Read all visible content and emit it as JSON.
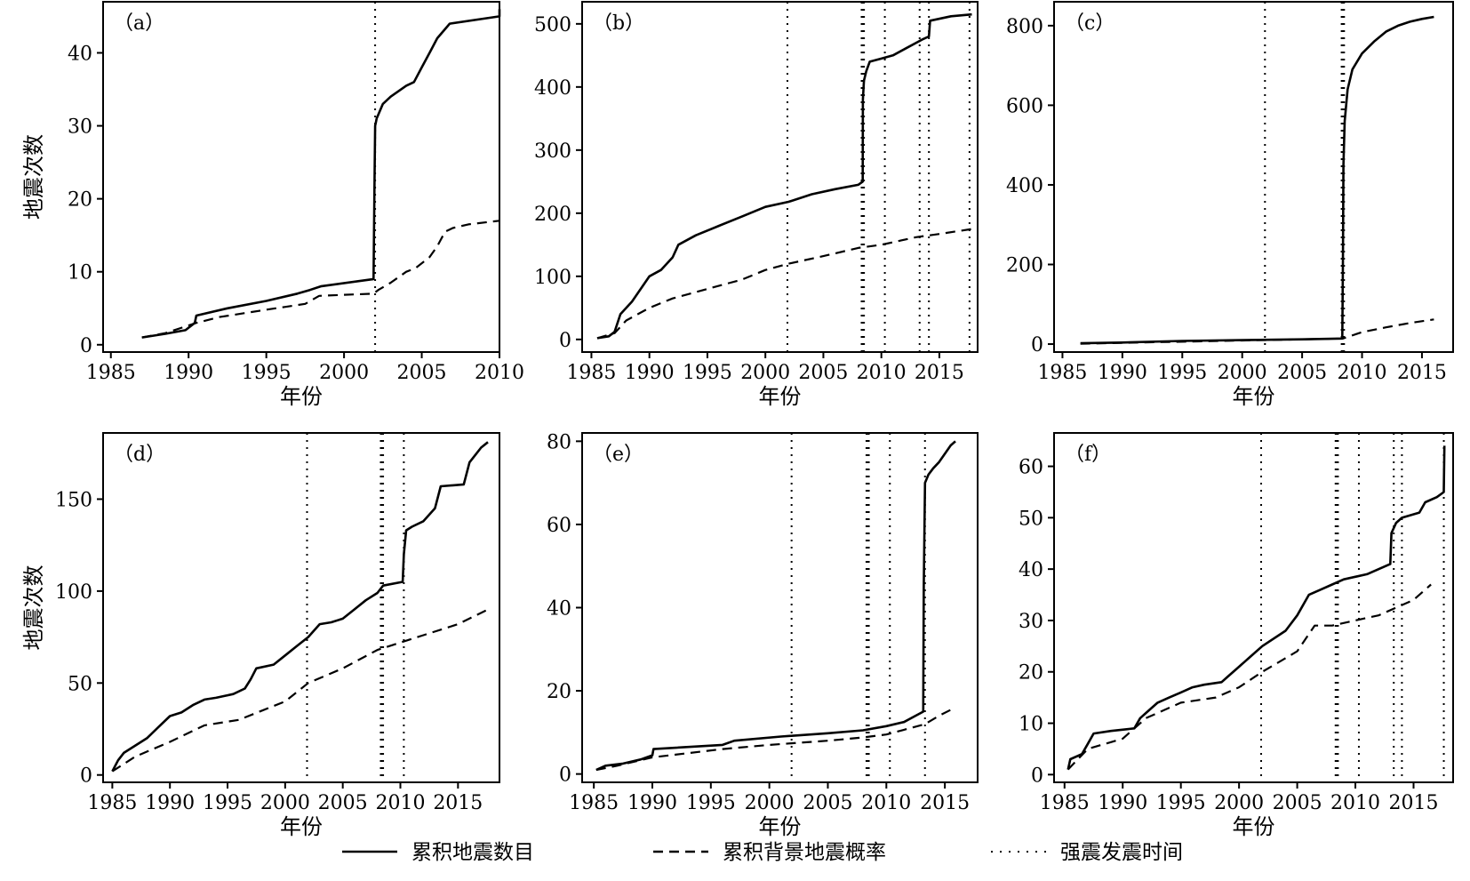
{
  "chart_data": [
    {
      "type": "line",
      "panel_label": "（a）",
      "xlabel": "年份",
      "ylabel": "地震次数",
      "xlim": [
        1984.5,
        2010
      ],
      "ylim": [
        -1,
        47
      ],
      "xticks": [
        1985,
        1990,
        1995,
        2000,
        2005,
        2010
      ],
      "yticks": [
        0,
        10,
        20,
        30,
        40
      ],
      "events": [
        2002.0
      ],
      "series": [
        {
          "name": "累积地震数目",
          "style": "solid",
          "x": [
            1987.0,
            1988.5,
            1989.8,
            1990.4,
            1990.5,
            1992.5,
            1995.0,
            1997.0,
            1997.8,
            1998.5,
            2001.9,
            2001.95,
            2002.0,
            2002.05,
            2002.1,
            2002.5,
            2003.0,
            2004.0,
            2004.5,
            2005.0,
            2005.5,
            2006.0,
            2006.8,
            2010.0,
            2010.0
          ],
          "y": [
            1,
            1.5,
            2,
            3,
            4,
            5,
            6,
            7,
            7.5,
            8,
            9,
            20,
            30,
            30.5,
            31,
            33,
            34,
            35.5,
            36,
            38,
            40,
            42,
            44,
            45,
            46
          ]
        },
        {
          "name": "累积背景地震概率",
          "style": "dashed",
          "x": [
            1987.0,
            1988.5,
            1990.5,
            1992.0,
            1995.0,
            1997.5,
            1998.4,
            2001.9,
            2002.2,
            2003.0,
            2004.0,
            2004.6,
            2005.5,
            2006.0,
            2006.5,
            2007.0,
            2008.0,
            2010.0
          ],
          "y": [
            1,
            1.6,
            3,
            3.8,
            4.8,
            5.6,
            6.7,
            7,
            7.5,
            8.5,
            10,
            10.5,
            12,
            13.5,
            15.5,
            16,
            16.5,
            17
          ]
        }
      ]
    },
    {
      "type": "line",
      "panel_label": "（b）",
      "xlabel": "年份",
      "ylabel": "",
      "xlim": [
        1984.2,
        2018.3
      ],
      "ylim": [
        -20,
        535
      ],
      "xticks": [
        1985,
        1990,
        1995,
        2000,
        2005,
        2010,
        2015
      ],
      "yticks": [
        0,
        100,
        200,
        300,
        400,
        500
      ],
      "events": [
        2001.9,
        2008.3,
        2008.4,
        2008.5,
        2010.3,
        2013.3,
        2014.1,
        2017.6
      ],
      "series": [
        {
          "name": "累积地震数目",
          "style": "solid",
          "x": [
            1985.5,
            1986.5,
            1987.0,
            1987.5,
            1988.5,
            1990.0,
            1991.0,
            1992.0,
            1992.5,
            1994.0,
            1996.0,
            1998.0,
            2000.0,
            2002.0,
            2004.0,
            2006.0,
            2008.0,
            2008.39,
            2008.41,
            2008.5,
            2008.7,
            2009.0,
            2010.0,
            2011.0,
            2012.0,
            2013.5,
            2014.1,
            2014.2,
            2016.0,
            2017.8
          ],
          "y": [
            2,
            5,
            12,
            40,
            60,
            100,
            110,
            130,
            150,
            165,
            180,
            195,
            210,
            218,
            230,
            238,
            245,
            250,
            380,
            410,
            425,
            440,
            445,
            450,
            460,
            475,
            480,
            505,
            512,
            515
          ]
        },
        {
          "name": "累积背景地震概率",
          "style": "dashed",
          "x": [
            1985.5,
            1987.0,
            1988.0,
            1990.0,
            1992.0,
            1995.0,
            1998.0,
            2000.0,
            2002.0,
            2005.0,
            2008.0,
            2010.0,
            2013.0,
            2015.0,
            2017.8
          ],
          "y": [
            2,
            10,
            30,
            50,
            65,
            80,
            95,
            110,
            120,
            132,
            145,
            150,
            162,
            167,
            175
          ]
        }
      ]
    },
    {
      "type": "line",
      "panel_label": "（c）",
      "xlabel": "年份",
      "ylabel": "",
      "xlim": [
        1984.3,
        2017.6
      ],
      "ylim": [
        -20,
        860
      ],
      "xticks": [
        1985,
        1990,
        1995,
        2000,
        2005,
        2010,
        2015
      ],
      "yticks": [
        0,
        200,
        400,
        600,
        800
      ],
      "events": [
        2001.9,
        2008.3,
        2008.4,
        2008.5
      ],
      "series": [
        {
          "name": "累积地震数目",
          "style": "solid",
          "x": [
            1986.5,
            1990.0,
            1995.0,
            2000.0,
            2005.0,
            2008.35,
            2008.4,
            2008.45,
            2008.55,
            2008.8,
            2009.2,
            2010.0,
            2011.0,
            2012.0,
            2013.0,
            2014.0,
            2015.0,
            2016.0
          ],
          "y": [
            2,
            4,
            8,
            10,
            12,
            14,
            200,
            450,
            560,
            640,
            690,
            730,
            760,
            785,
            800,
            810,
            817,
            822
          ]
        },
        {
          "name": "累积背景地震概率",
          "style": "dashed",
          "x": [
            1986.5,
            2000.0,
            2008.4,
            2009.0,
            2010.0,
            2012.0,
            2014.0,
            2016.0
          ],
          "y": [
            1,
            9,
            14,
            20,
            30,
            42,
            53,
            62
          ]
        }
      ]
    },
    {
      "type": "line",
      "panel_label": "（d）",
      "xlabel": "年份",
      "ylabel": "地震次数",
      "xlim": [
        1984.2,
        2018.6
      ],
      "ylim": [
        -4,
        186
      ],
      "xticks": [
        1985,
        1990,
        1995,
        2000,
        2005,
        2010,
        2015
      ],
      "yticks": [
        0,
        50,
        100,
        150
      ],
      "events": [
        2001.9,
        2008.3,
        2008.4,
        2008.5,
        2010.3
      ],
      "series": [
        {
          "name": "累积地震数目",
          "style": "solid",
          "x": [
            1985.0,
            1985.5,
            1986.0,
            1987.0,
            1988.0,
            1989.0,
            1990.0,
            1991.0,
            1992.0,
            1993.0,
            1994.0,
            1995.5,
            1996.5,
            1997.0,
            1997.5,
            1999.0,
            2000.0,
            2001.0,
            2002.0,
            2003.0,
            2004.0,
            2005.0,
            2006.0,
            2007.0,
            2008.0,
            2008.5,
            2010.2,
            2010.3,
            2010.5,
            2011.0,
            2012.0,
            2013.0,
            2013.5,
            2015.5,
            2016.0,
            2017.0,
            2017.6
          ],
          "y": [
            2,
            8,
            12,
            16,
            20,
            26,
            32,
            34,
            38,
            41,
            42,
            44,
            47,
            52,
            58,
            60,
            65,
            70,
            75,
            82,
            83,
            85,
            90,
            95,
            99,
            103,
            105,
            120,
            133,
            135,
            138,
            145,
            157,
            158,
            170,
            178,
            181
          ]
        },
        {
          "name": "累积背景地震概率",
          "style": "dashed",
          "x": [
            1985.0,
            1987.0,
            1990.0,
            1993.0,
            1996.0,
            1998.0,
            2000.0,
            2002.0,
            2005.0,
            2008.0,
            2010.0,
            2012.0,
            2015.0,
            2017.6
          ],
          "y": [
            2,
            10,
            18,
            27,
            30,
            35,
            40,
            50,
            58,
            68,
            72,
            76,
            82,
            90
          ]
        }
      ]
    },
    {
      "type": "line",
      "panel_label": "（e）",
      "xlabel": "年份",
      "ylabel": "",
      "xlim": [
        1984.0,
        2017.8
      ],
      "ylim": [
        -2,
        82
      ],
      "xticks": [
        1985,
        1990,
        1995,
        2000,
        2005,
        2010,
        2015
      ],
      "yticks": [
        0,
        20,
        40,
        60,
        80
      ],
      "events": [
        2001.9,
        2008.3,
        2008.4,
        2008.5,
        2010.3,
        2013.3
      ],
      "series": [
        {
          "name": "累积地震数目",
          "style": "solid",
          "x": [
            1985.2,
            1986.0,
            1987.5,
            1989.0,
            1990.0,
            1990.1,
            1996.0,
            1997.0,
            2001.0,
            2005.0,
            2008.0,
            2010.0,
            2011.5,
            2012.5,
            2013.15,
            2013.2,
            2013.3,
            2013.6,
            2014.0,
            2014.5,
            2015.5,
            2015.9
          ],
          "y": [
            1,
            2,
            2.5,
            3.5,
            4.5,
            6,
            7,
            8,
            9,
            9.8,
            10.5,
            11.5,
            12.5,
            14,
            15,
            45,
            70,
            72,
            73.5,
            75,
            79,
            80
          ]
        },
        {
          "name": "累积背景地震概率",
          "style": "dashed",
          "x": [
            1985.2,
            1987.0,
            1990.0,
            1993.0,
            1996.0,
            2000.0,
            2005.0,
            2008.0,
            2010.0,
            2012.0,
            2013.3,
            2014.5,
            2015.9
          ],
          "y": [
            1,
            2,
            4,
            5,
            6,
            7,
            8,
            8.8,
            9.5,
            11,
            12,
            14,
            16
          ]
        }
      ]
    },
    {
      "type": "line",
      "panel_label": "（f）",
      "xlabel": "年份",
      "ylabel": "",
      "xlim": [
        1984.1,
        2018.4
      ],
      "ylim": [
        -1.5,
        66.5
      ],
      "xticks": [
        1985,
        1990,
        1995,
        2000,
        2005,
        2010,
        2015
      ],
      "yticks": [
        0,
        10,
        20,
        30,
        40,
        50,
        60
      ],
      "events": [
        2001.9,
        2008.3,
        2008.4,
        2008.5,
        2010.3,
        2013.3,
        2014.0,
        2017.6
      ],
      "series": [
        {
          "name": "累积地震数目",
          "style": "solid",
          "x": [
            1985.3,
            1985.5,
            1986.5,
            1987.0,
            1987.5,
            1989.0,
            1991.0,
            1991.5,
            1992.0,
            1993.0,
            1994.0,
            1995.0,
            1996.0,
            1997.0,
            1998.5,
            1999.0,
            2000.0,
            2001.0,
            2002.0,
            2004.0,
            2005.0,
            2006.0,
            2007.0,
            2008.0,
            2009.0,
            2010.0,
            2011.0,
            2012.0,
            2013.0,
            2013.1,
            2013.5,
            2014.0,
            2015.5,
            2016.0,
            2017.0,
            2017.6,
            2017.65
          ],
          "y": [
            1,
            3,
            4,
            6,
            8,
            8.5,
            9,
            11,
            12,
            14,
            15,
            16,
            17,
            17.5,
            18,
            19,
            21,
            23,
            25,
            28,
            31,
            35,
            36,
            37,
            38,
            38.5,
            39,
            40,
            41,
            47,
            49,
            50,
            51,
            53,
            54,
            55,
            64
          ]
        },
        {
          "name": "累积背景地震概率",
          "style": "dashed",
          "x": [
            1985.3,
            1987.0,
            1990.0,
            1992.0,
            1995.0,
            1998.0,
            2000.0,
            2002.0,
            2005.0,
            2006.5,
            2008.0,
            2010.0,
            2012.0,
            2014.0,
            2015.0,
            2016.5
          ],
          "y": [
            1,
            5,
            7,
            11,
            14,
            15,
            17,
            20,
            24,
            29,
            29,
            30,
            31,
            33,
            34,
            37
          ]
        }
      ]
    }
  ],
  "legend": {
    "placement": "bottom",
    "items": [
      {
        "label": "累积地震数目",
        "style": "solid"
      },
      {
        "label": "累积背景地震概率",
        "style": "dashed"
      },
      {
        "label": "强震发震时间",
        "style": "dotted"
      }
    ]
  }
}
